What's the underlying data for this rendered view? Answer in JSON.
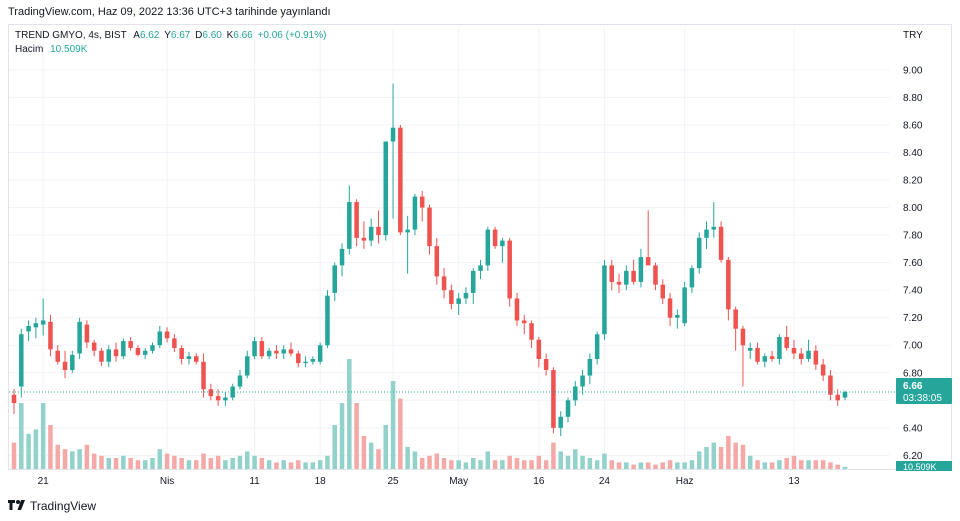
{
  "header": {
    "published": "TradingView.com, Haz 09, 2022 13:36 UTC+3 tarihinde yayınlandı"
  },
  "legend": {
    "symbol": "TREND GMYO, 4s, BIST",
    "open_label": "A",
    "open": "6.62",
    "high_label": "Y",
    "high": "6.67",
    "low_label": "D",
    "low": "6.60",
    "close_label": "K",
    "close": "6.66",
    "change": "+0.06 (+0.91%)",
    "volume_label": "Hacim",
    "volume": "10.509K"
  },
  "price_axis": {
    "currency": "TRY",
    "ticks": [
      "9.00",
      "8.80",
      "8.60",
      "8.40",
      "8.20",
      "8.00",
      "7.80",
      "7.60",
      "7.40",
      "7.20",
      "7.00",
      "6.80",
      "6.60",
      "6.40",
      "6.20"
    ]
  },
  "price_label": {
    "value": "6.66",
    "countdown": "03:38:05",
    "volume": "10.509K"
  },
  "time_axis": {
    "ticks": [
      "21",
      "Nis",
      "11",
      "18",
      "25",
      "May",
      "16",
      "24",
      "Haz",
      "13"
    ]
  },
  "footer": {
    "brand": "TradingView"
  },
  "colors": {
    "up": "#26a69a",
    "down": "#ef5350",
    "up_volume": "#93d1cb",
    "down_volume": "#f5a9a7",
    "grid": "#f0f3fa",
    "axis_text": "#131722"
  },
  "chart_data": {
    "type": "candlestick",
    "symbol": "TREND GMYO",
    "interval": "4s",
    "exchange": "BIST",
    "ylim": [
      6.13,
      9.13
    ],
    "x_ticks": [
      {
        "label": "21",
        "index": 4
      },
      {
        "label": "Nis",
        "index": 21
      },
      {
        "label": "11",
        "index": 33
      },
      {
        "label": "18",
        "index": 42
      },
      {
        "label": "25",
        "index": 52
      },
      {
        "label": "May",
        "index": 61
      },
      {
        "label": "16",
        "index": 72
      },
      {
        "label": "24",
        "index": 81
      },
      {
        "label": "Haz",
        "index": 92
      },
      {
        "label": "13",
        "index": 107
      }
    ],
    "candles": [
      [
        6.64,
        6.68,
        6.5,
        6.58,
        1.2
      ],
      [
        6.7,
        7.12,
        6.62,
        7.08,
        3.0
      ],
      [
        7.1,
        7.18,
        7.03,
        7.14,
        1.6
      ],
      [
        7.13,
        7.2,
        7.05,
        7.16,
        1.8
      ],
      [
        7.15,
        7.34,
        7.07,
        7.18,
        3.0
      ],
      [
        7.17,
        7.22,
        6.92,
        6.97,
        2.0
      ],
      [
        6.96,
        7.0,
        6.86,
        6.88,
        1.1
      ],
      [
        6.88,
        6.96,
        6.76,
        6.82,
        0.9
      ],
      [
        6.82,
        6.96,
        6.8,
        6.93,
        0.8
      ],
      [
        6.94,
        7.2,
        6.9,
        7.17,
        0.9
      ],
      [
        7.15,
        7.18,
        6.98,
        7.02,
        1.1
      ],
      [
        7.02,
        7.04,
        6.92,
        6.96,
        0.7
      ],
      [
        6.96,
        6.98,
        6.85,
        6.88,
        0.6
      ],
      [
        6.88,
        7.0,
        6.84,
        6.97,
        0.5
      ],
      [
        6.97,
        7.02,
        6.88,
        6.92,
        0.5
      ],
      [
        6.92,
        7.05,
        6.9,
        7.03,
        0.6
      ],
      [
        7.03,
        7.06,
        6.96,
        6.98,
        0.5
      ],
      [
        6.98,
        7.0,
        6.92,
        6.93,
        0.4
      ],
      [
        6.93,
        6.98,
        6.9,
        6.96,
        0.4
      ],
      [
        6.96,
        7.02,
        6.94,
        7.0,
        0.5
      ],
      [
        7.0,
        7.14,
        6.98,
        7.1,
        0.9
      ],
      [
        7.1,
        7.13,
        7.02,
        7.05,
        0.7
      ],
      [
        7.05,
        7.08,
        6.95,
        6.98,
        0.6
      ],
      [
        6.98,
        7.0,
        6.86,
        6.9,
        0.5
      ],
      [
        6.9,
        6.95,
        6.86,
        6.92,
        0.4
      ],
      [
        6.92,
        6.94,
        6.86,
        6.88,
        0.4
      ],
      [
        6.88,
        6.94,
        6.62,
        6.68,
        0.7
      ],
      [
        6.68,
        6.72,
        6.6,
        6.63,
        0.5
      ],
      [
        6.63,
        6.68,
        6.56,
        6.6,
        0.6
      ],
      [
        6.6,
        6.66,
        6.56,
        6.62,
        0.4
      ],
      [
        6.62,
        6.72,
        6.6,
        6.7,
        0.5
      ],
      [
        6.7,
        6.82,
        6.68,
        6.78,
        0.6
      ],
      [
        6.78,
        6.96,
        6.76,
        6.92,
        0.8
      ],
      [
        6.92,
        7.06,
        6.9,
        7.03,
        0.6
      ],
      [
        7.03,
        7.06,
        6.9,
        6.92,
        0.5
      ],
      [
        6.92,
        6.98,
        6.9,
        6.96,
        0.4
      ],
      [
        6.96,
        7.0,
        6.9,
        6.94,
        0.3
      ],
      [
        6.94,
        7.0,
        6.9,
        6.97,
        0.4
      ],
      [
        6.97,
        7.02,
        6.92,
        6.94,
        0.3
      ],
      [
        6.94,
        6.96,
        6.84,
        6.87,
        0.4
      ],
      [
        6.87,
        6.92,
        6.84,
        6.88,
        0.3
      ],
      [
        6.88,
        6.92,
        6.86,
        6.9,
        0.3
      ],
      [
        6.88,
        7.02,
        6.86,
        7.0,
        0.4
      ],
      [
        7.0,
        7.4,
        6.98,
        7.36,
        0.6
      ],
      [
        7.38,
        7.6,
        7.32,
        7.58,
        2.0
      ],
      [
        7.58,
        7.74,
        7.5,
        7.7,
        3.0
      ],
      [
        7.7,
        8.16,
        7.66,
        8.04,
        5.0
      ],
      [
        8.04,
        8.06,
        7.72,
        7.78,
        3.0
      ],
      [
        7.78,
        7.9,
        7.7,
        7.76,
        1.5
      ],
      [
        7.76,
        7.92,
        7.72,
        7.86,
        1.2
      ],
      [
        7.86,
        7.98,
        7.74,
        7.8,
        0.9
      ],
      [
        7.8,
        8.48,
        7.76,
        8.48,
        2.0
      ],
      [
        8.48,
        8.9,
        7.92,
        8.58,
        4.0
      ],
      [
        8.58,
        8.6,
        7.8,
        7.82,
        3.2
      ],
      [
        7.82,
        7.94,
        7.52,
        7.84,
        1.0
      ],
      [
        7.84,
        8.1,
        7.8,
        8.08,
        0.8
      ],
      [
        8.08,
        8.12,
        7.9,
        8.0,
        0.5
      ],
      [
        8.0,
        8.02,
        7.66,
        7.72,
        0.6
      ],
      [
        7.72,
        7.78,
        7.44,
        7.5,
        0.7
      ],
      [
        7.5,
        7.56,
        7.34,
        7.4,
        0.5
      ],
      [
        7.4,
        7.44,
        7.26,
        7.3,
        0.4
      ],
      [
        7.3,
        7.38,
        7.22,
        7.34,
        0.4
      ],
      [
        7.34,
        7.42,
        7.3,
        7.38,
        0.3
      ],
      [
        7.38,
        7.56,
        7.3,
        7.54,
        0.5
      ],
      [
        7.54,
        7.62,
        7.48,
        7.58,
        0.4
      ],
      [
        7.58,
        7.86,
        7.54,
        7.84,
        0.8
      ],
      [
        7.84,
        7.86,
        7.7,
        7.72,
        0.4
      ],
      [
        7.72,
        7.78,
        7.6,
        7.76,
        0.4
      ],
      [
        7.76,
        7.78,
        7.28,
        7.34,
        0.6
      ],
      [
        7.34,
        7.38,
        7.14,
        7.18,
        0.5
      ],
      [
        7.18,
        7.22,
        7.08,
        7.16,
        0.4
      ],
      [
        7.16,
        7.18,
        6.98,
        7.04,
        0.4
      ],
      [
        7.04,
        7.06,
        6.84,
        6.9,
        0.6
      ],
      [
        6.9,
        6.94,
        6.78,
        6.82,
        0.4
      ],
      [
        6.82,
        6.84,
        6.36,
        6.4,
        1.2
      ],
      [
        6.4,
        6.52,
        6.34,
        6.48,
        0.8
      ],
      [
        6.48,
        6.62,
        6.44,
        6.6,
        0.6
      ],
      [
        6.6,
        6.74,
        6.56,
        6.7,
        0.9
      ],
      [
        6.7,
        6.82,
        6.64,
        6.78,
        0.6
      ],
      [
        6.78,
        6.94,
        6.72,
        6.9,
        0.5
      ],
      [
        6.9,
        7.1,
        6.86,
        7.08,
        0.4
      ],
      [
        7.08,
        7.62,
        7.04,
        7.58,
        0.7
      ],
      [
        7.58,
        7.62,
        7.4,
        7.46,
        0.4
      ],
      [
        7.46,
        7.52,
        7.38,
        7.44,
        0.3
      ],
      [
        7.44,
        7.58,
        7.4,
        7.54,
        0.3
      ],
      [
        7.54,
        7.62,
        7.44,
        7.46,
        0.2
      ],
      [
        7.46,
        7.7,
        7.42,
        7.64,
        0.3
      ],
      [
        7.64,
        7.98,
        7.6,
        7.58,
        0.3
      ],
      [
        7.58,
        7.6,
        7.4,
        7.44,
        0.2
      ],
      [
        7.44,
        7.48,
        7.3,
        7.34,
        0.3
      ],
      [
        7.34,
        7.38,
        7.14,
        7.2,
        0.4
      ],
      [
        7.2,
        7.26,
        7.12,
        7.22,
        0.3
      ],
      [
        7.16,
        7.46,
        7.14,
        7.42,
        0.3
      ],
      [
        7.42,
        7.58,
        7.38,
        7.56,
        0.4
      ],
      [
        7.56,
        7.82,
        7.52,
        7.78,
        0.8
      ],
      [
        7.78,
        7.9,
        7.7,
        7.84,
        1.0
      ],
      [
        7.84,
        8.04,
        7.78,
        7.86,
        1.2
      ],
      [
        7.86,
        7.9,
        7.6,
        7.62,
        1.0
      ],
      [
        7.62,
        7.64,
        7.18,
        7.26,
        1.5
      ],
      [
        7.26,
        7.28,
        6.96,
        7.12,
        1.2
      ],
      [
        7.12,
        7.14,
        6.7,
        7.0,
        1.1
      ],
      [
        6.96,
        7.02,
        6.9,
        6.98,
        0.6
      ],
      [
        6.98,
        7.02,
        6.86,
        6.88,
        0.4
      ],
      [
        6.88,
        6.94,
        6.84,
        6.92,
        0.3
      ],
      [
        6.92,
        6.96,
        6.88,
        6.9,
        0.3
      ],
      [
        6.9,
        7.08,
        6.86,
        7.06,
        0.4
      ],
      [
        7.06,
        7.14,
        6.96,
        6.98,
        0.5
      ],
      [
        6.98,
        7.04,
        6.9,
        6.94,
        0.6
      ],
      [
        6.94,
        6.98,
        6.86,
        6.9,
        0.4
      ],
      [
        6.9,
        7.04,
        6.88,
        6.96,
        0.4
      ],
      [
        6.96,
        7.0,
        6.82,
        6.86,
        0.4
      ],
      [
        6.86,
        6.9,
        6.74,
        6.78,
        0.4
      ],
      [
        6.78,
        6.82,
        6.6,
        6.64,
        0.3
      ],
      [
        6.64,
        6.68,
        6.56,
        6.6,
        0.2
      ],
      [
        6.62,
        6.67,
        6.6,
        6.66,
        0.1
      ]
    ]
  }
}
